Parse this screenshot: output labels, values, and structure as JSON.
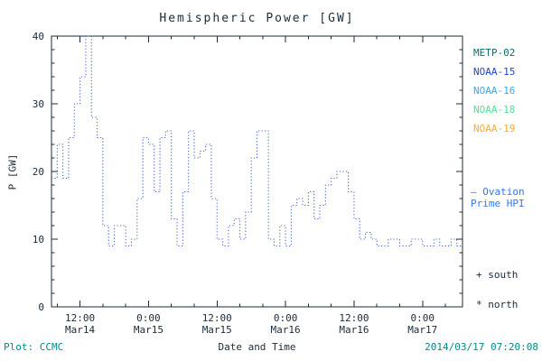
{
  "colors": {
    "background": "#ffffff",
    "axis": "#1a2b3a",
    "footer": "#008b8b"
  },
  "legend": {
    "satellites": [
      {
        "label": "METP-02",
        "color": "#0f6b6b"
      },
      {
        "label": "NOAA-15",
        "color": "#2244cc"
      },
      {
        "label": "NOAA-16",
        "color": "#33aaee"
      },
      {
        "label": "NOAA-18",
        "color": "#55dd99"
      },
      {
        "label": "NOAA-19",
        "color": "#ffaa33"
      }
    ],
    "ovation": {
      "line1": "— Ovation",
      "line2": "Prime HPI",
      "color": "#3377ee"
    },
    "markers": [
      {
        "symbol": "+",
        "label": "south"
      },
      {
        "symbol": "*",
        "label": "north"
      }
    ]
  },
  "footer": {
    "left": "Plot: CCMC",
    "right": "2014/03/17 07:20:08"
  },
  "chart_data": {
    "type": "line",
    "title": "Hemispheric Power [GW]",
    "xlabel": "Date and Time",
    "ylabel": "P [GW]",
    "ylim": [
      0,
      40
    ],
    "yticks": [
      0,
      10,
      20,
      30,
      40
    ],
    "xlim_hours": [
      0,
      72
    ],
    "xticks": [
      {
        "hour": 5,
        "time": "12:00",
        "date": "Mar14"
      },
      {
        "hour": 17,
        "time": "0:00",
        "date": "Mar15"
      },
      {
        "hour": 29,
        "time": "12:00",
        "date": "Mar15"
      },
      {
        "hour": 41,
        "time": "0:00",
        "date": "Mar16"
      },
      {
        "hour": 53,
        "time": "12:00",
        "date": "Mar16"
      },
      {
        "hour": 65,
        "time": "0:00",
        "date": "Mar17"
      }
    ],
    "series": [
      {
        "name": "Ovation Prime HPI",
        "style": "dotted-step",
        "cadence_hours": 1,
        "color": "#4466cc",
        "values": [
          19,
          24,
          19,
          25,
          30,
          34,
          40,
          28,
          25,
          12,
          9,
          12,
          12,
          9,
          10,
          16,
          25,
          24,
          17,
          25,
          26,
          13,
          9,
          17,
          26,
          22,
          23,
          24,
          16,
          10,
          9,
          12,
          13,
          10,
          14,
          22,
          26,
          26,
          10,
          9,
          12,
          9,
          15,
          16,
          15,
          17,
          13,
          15,
          18,
          19,
          20,
          20,
          17,
          13,
          10,
          11,
          10,
          9,
          9,
          10,
          10,
          9,
          9,
          10,
          10,
          9,
          9,
          10,
          9,
          9,
          10,
          9
        ]
      }
    ]
  }
}
